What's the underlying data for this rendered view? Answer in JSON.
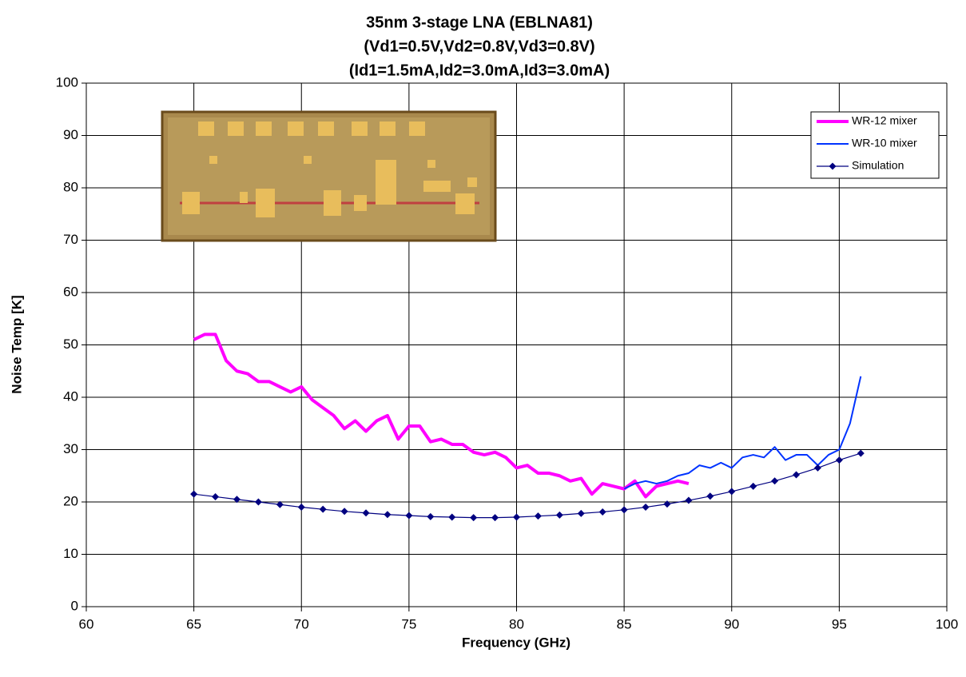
{
  "chart_data": {
    "type": "line",
    "title": "35nm 3-stage LNA (EBLNA81)",
    "subtitle": [
      "(Vd1=0.5V,Vd2=0.8V,Vd3=0.8V)",
      "(Id1=1.5mA,Id2=3.0mA,Id3=3.0mA)"
    ],
    "x_label": "Frequency (GHz)",
    "y_label": "Noise Temp [K]",
    "xlim": [
      60,
      100
    ],
    "xticks": [
      60,
      65,
      70,
      75,
      80,
      85,
      90,
      95,
      100
    ],
    "ylim": [
      0,
      100
    ],
    "yticks": [
      0,
      10,
      20,
      30,
      40,
      50,
      60,
      70,
      80,
      90,
      100
    ],
    "grid": true,
    "legend": "upper right",
    "series": [
      {
        "name": "WR-12 mixer",
        "color": "#ff00ff",
        "line_width": 4,
        "x": [
          65,
          65.5,
          66,
          66.5,
          67,
          67.5,
          68,
          68.5,
          69,
          69.5,
          70,
          70.5,
          71,
          71.5,
          72,
          72.5,
          73,
          73.5,
          74,
          74.5,
          75,
          75.5,
          76,
          76.5,
          77,
          77.5,
          78,
          78.5,
          79,
          79.5,
          80,
          80.5,
          81,
          81.5,
          82,
          82.5,
          83,
          83.5,
          84,
          84.5,
          85,
          85.5,
          86,
          86.5,
          87,
          87.5,
          88
        ],
        "values": [
          51,
          52,
          52,
          47,
          45,
          44.5,
          43,
          43,
          42,
          41,
          42,
          39.5,
          38,
          36.5,
          34,
          35.5,
          33.5,
          35.5,
          36.5,
          32,
          34.5,
          34.5,
          31.5,
          32,
          31,
          31,
          29.5,
          29,
          29.5,
          28.5,
          26.5,
          27,
          25.5,
          25.5,
          25,
          24,
          24.5,
          21.5,
          23.5,
          23,
          22.5,
          24,
          21,
          23,
          23.5,
          24,
          23.5
        ]
      },
      {
        "name": "WR-10 mixer",
        "color": "#0033ff",
        "line_width": 2,
        "x": [
          85,
          85.5,
          86,
          86.5,
          87,
          87.5,
          88,
          88.5,
          89,
          89.5,
          90,
          90.5,
          91,
          91.5,
          92,
          92.5,
          93,
          93.5,
          94,
          94.5,
          95,
          95.5,
          95.75,
          96
        ],
        "values": [
          22.5,
          23.5,
          24,
          23.5,
          24,
          25,
          25.5,
          27,
          26.5,
          27.5,
          26.5,
          28.5,
          29,
          28.5,
          30.5,
          28,
          29,
          29,
          27,
          29,
          30,
          35,
          39.5,
          44
        ]
      },
      {
        "name": "Simulation",
        "color": "#000080",
        "line_width": 1.2,
        "marker": "diamond",
        "x": [
          65,
          66,
          67,
          68,
          69,
          70,
          71,
          72,
          73,
          74,
          75,
          76,
          77,
          78,
          79,
          80,
          81,
          82,
          83,
          84,
          85,
          86,
          87,
          88,
          89,
          90,
          91,
          92,
          93,
          94,
          95,
          96
        ],
        "values": [
          21.5,
          21,
          20.5,
          20,
          19.5,
          19,
          18.6,
          18.2,
          17.9,
          17.6,
          17.4,
          17.2,
          17.1,
          17,
          17,
          17.1,
          17.3,
          17.5,
          17.8,
          18.1,
          18.5,
          19,
          19.6,
          20.3,
          21.1,
          22,
          23,
          24,
          25.2,
          26.5,
          28,
          29.3
        ]
      }
    ]
  }
}
